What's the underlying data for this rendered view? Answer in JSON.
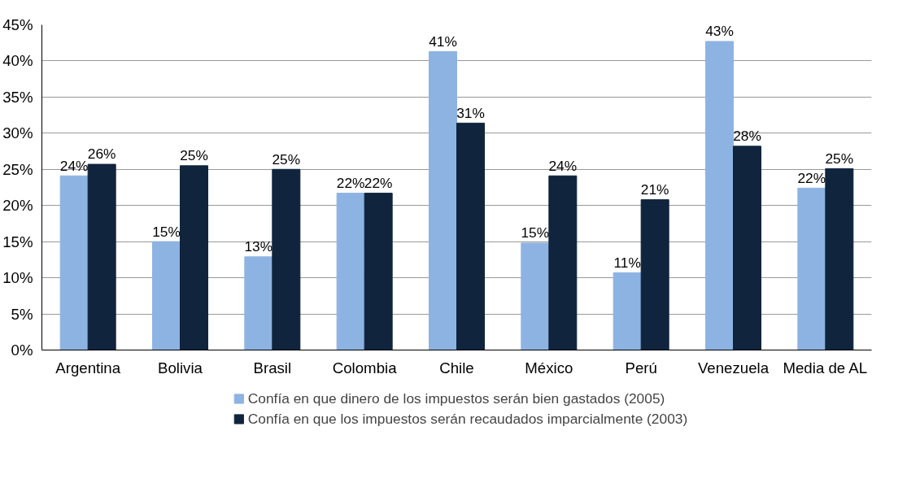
{
  "chart_data": {
    "type": "bar",
    "categories": [
      "Argentina",
      "Bolivia",
      "Brasil",
      "Colombia",
      "Chile",
      "México",
      "Perú",
      "Venezuela",
      "Media de AL"
    ],
    "series": [
      {
        "name": "Confía en que dinero de los impuestos serán bien gastados (2005)",
        "color": "#8db3e2",
        "values": [
          24.1,
          15.0,
          12.9,
          21.7,
          41.3,
          14.8,
          10.7,
          42.7,
          22.4
        ],
        "value_labels": [
          "24%",
          "15%",
          "13%",
          "22%",
          "41%",
          "15%",
          "11%",
          "43%",
          "22%"
        ]
      },
      {
        "name": "Confía en que los impuestos serán recaudados imparcialmente (2003)",
        "color": "#10243e",
        "values": [
          25.7,
          25.5,
          25.0,
          21.7,
          31.4,
          24.1,
          20.8,
          28.2,
          25.1
        ],
        "value_labels": [
          "26%",
          "25%",
          "25%",
          "22%",
          "31%",
          "24%",
          "21%",
          "28%",
          "25%"
        ]
      }
    ],
    "ylim": [
      0,
      45
    ],
    "yticks": [
      {
        "value": 0,
        "label": "0%"
      },
      {
        "value": 5,
        "label": "5%"
      },
      {
        "value": 10,
        "label": "10%"
      },
      {
        "value": 15,
        "label": "15%"
      },
      {
        "value": 20,
        "label": "20%"
      },
      {
        "value": 25,
        "label": "25%"
      },
      {
        "value": 30,
        "label": "30%"
      },
      {
        "value": 35,
        "label": "35%"
      },
      {
        "value": 40,
        "label": "40%"
      },
      {
        "value": 45,
        "label": "45%"
      }
    ],
    "grid": "y",
    "legend": "bottom"
  }
}
